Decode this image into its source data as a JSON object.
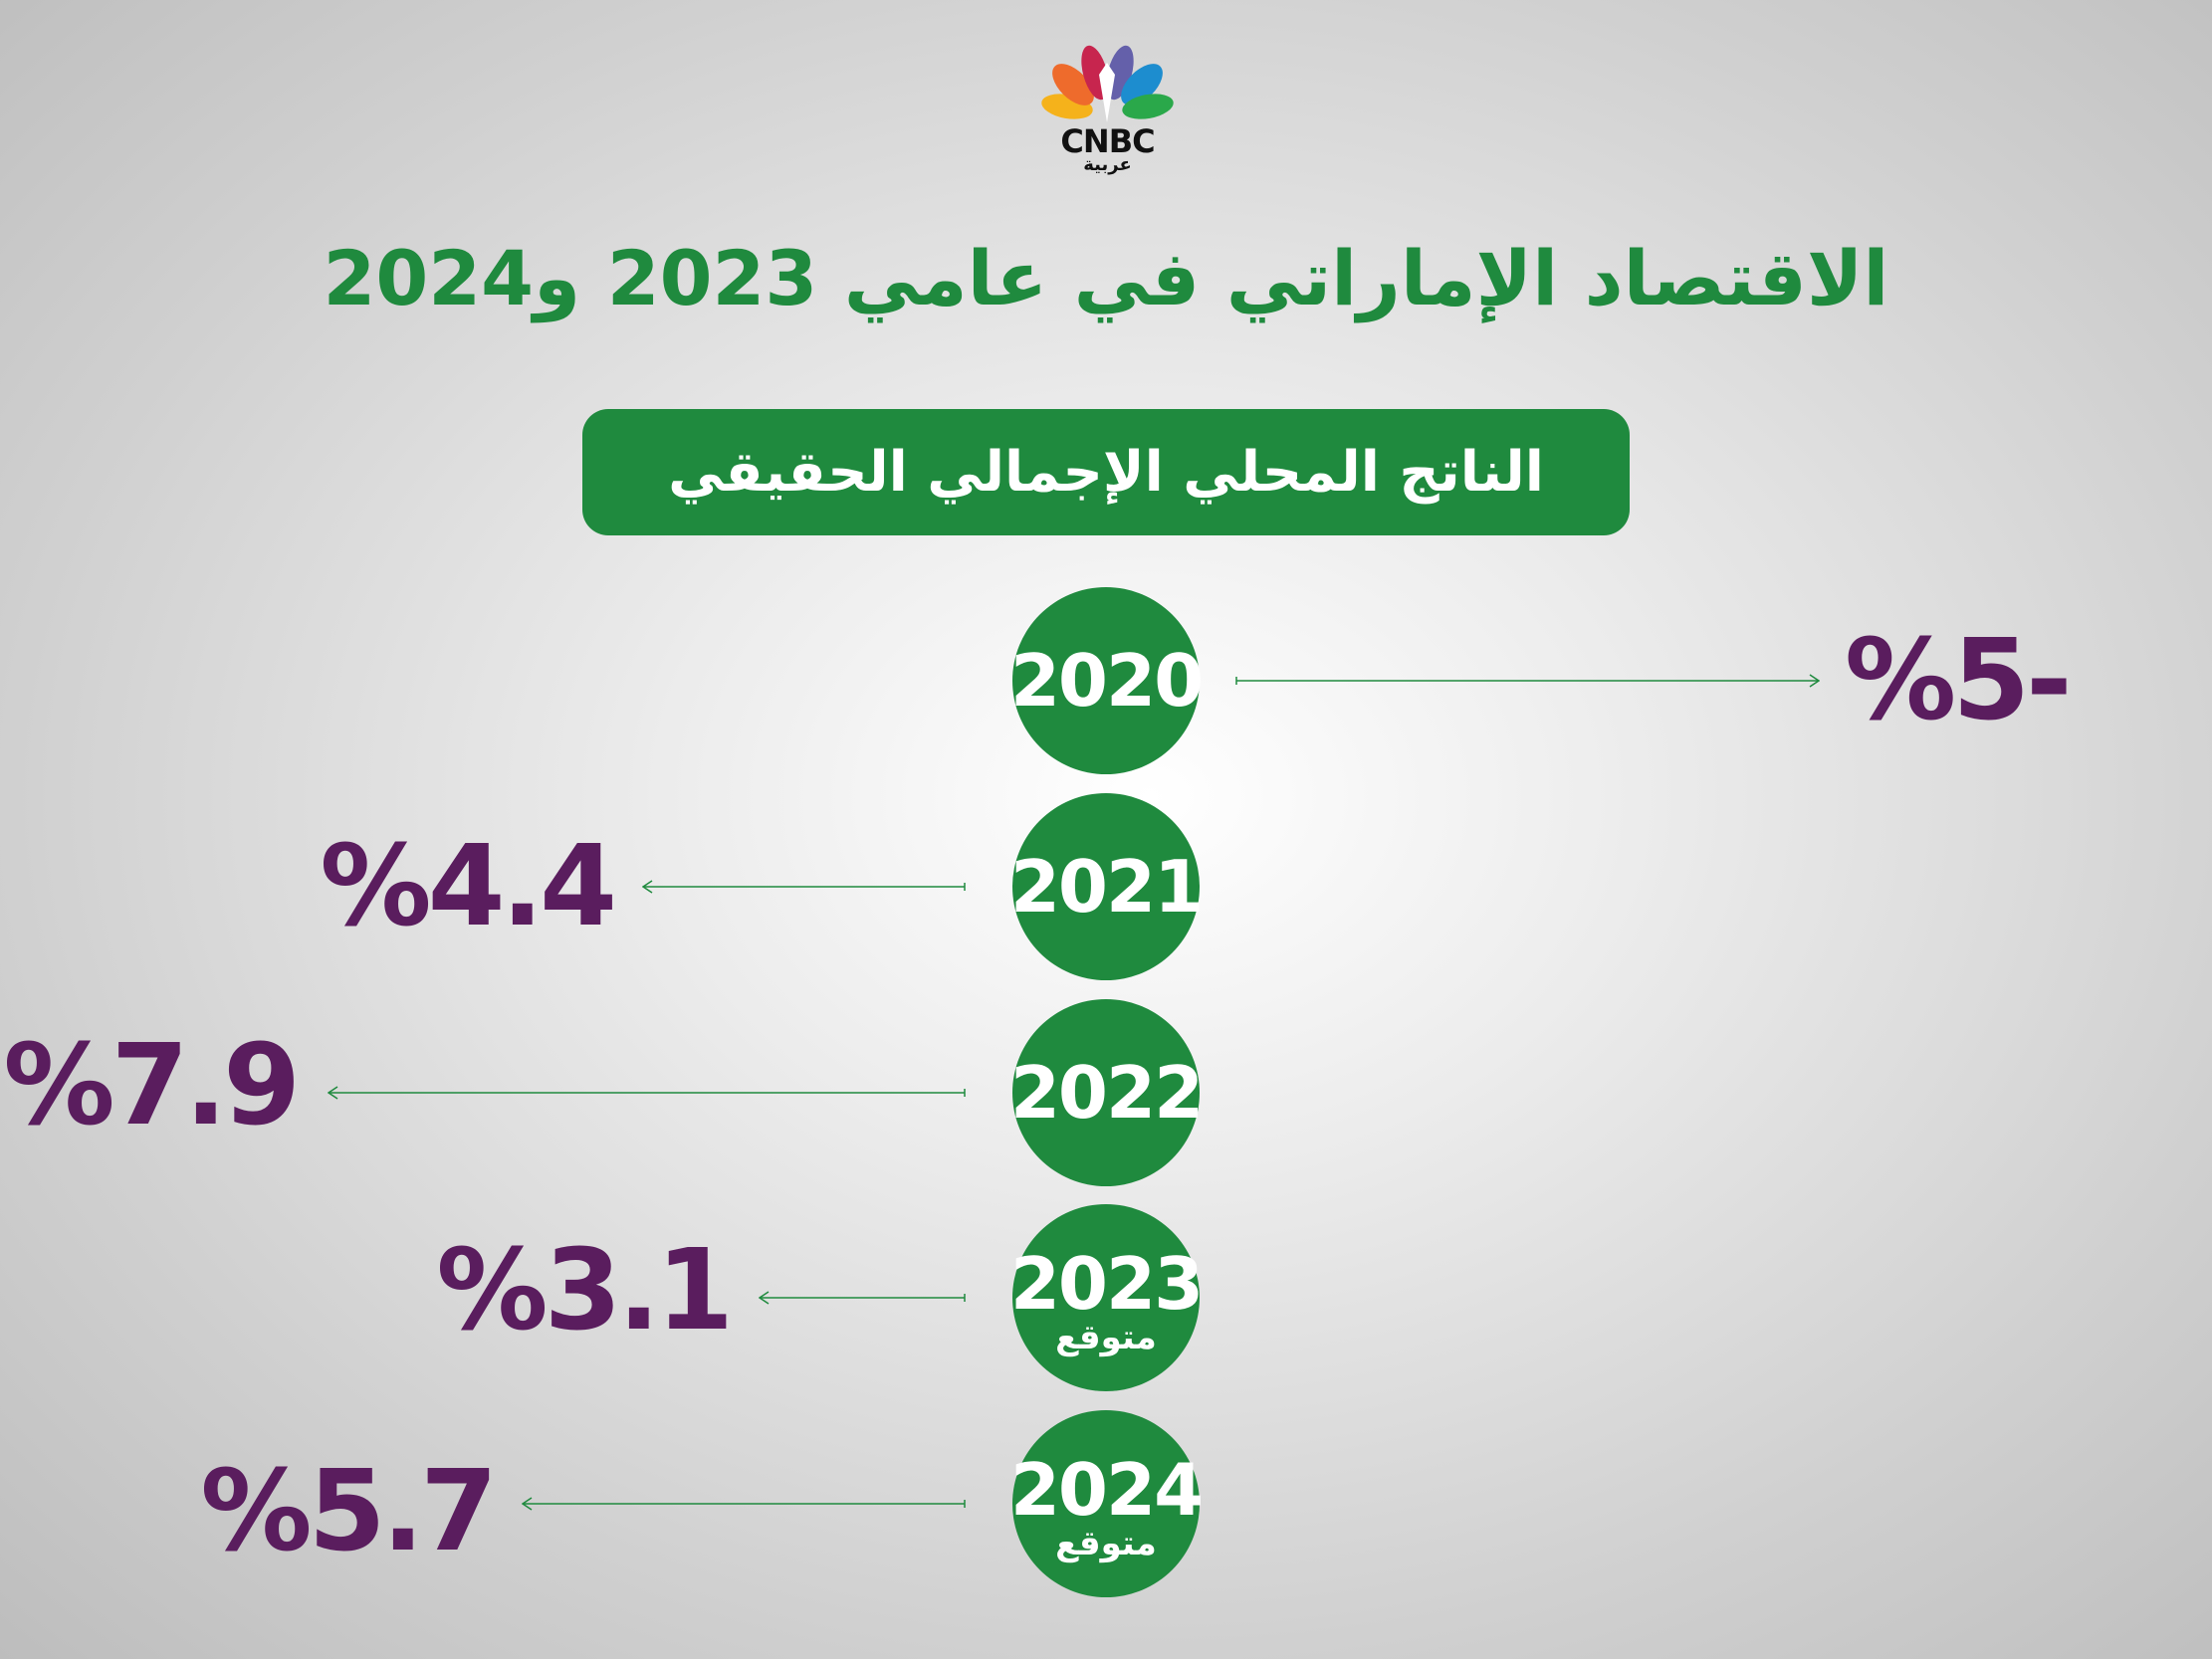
{
  "logo": {
    "brand": "CNBC",
    "subtitle": "عربية",
    "colors": [
      "#f5b21b",
      "#ee6b2c",
      "#c7254e",
      "#6460aa",
      "#1d8dcf",
      "#2aa84a"
    ]
  },
  "title": "الاقتصاد الإماراتي في عامي 2023 و2024",
  "banner": "الناتج المحلي الإجمالي الحقيقي",
  "colors": {
    "green": "#1f8a3e",
    "purple": "#5a1d5e"
  },
  "rows": [
    {
      "year": "2020",
      "note": "",
      "value": "%5-"
    },
    {
      "year": "2021",
      "note": "",
      "value": "%4.4"
    },
    {
      "year": "2022",
      "note": "",
      "value": "%7.9"
    },
    {
      "year": "2023",
      "note": "متوقع",
      "value": "%3.1"
    },
    {
      "year": "2024",
      "note": "متوقع",
      "value": "%5.7"
    }
  ]
}
